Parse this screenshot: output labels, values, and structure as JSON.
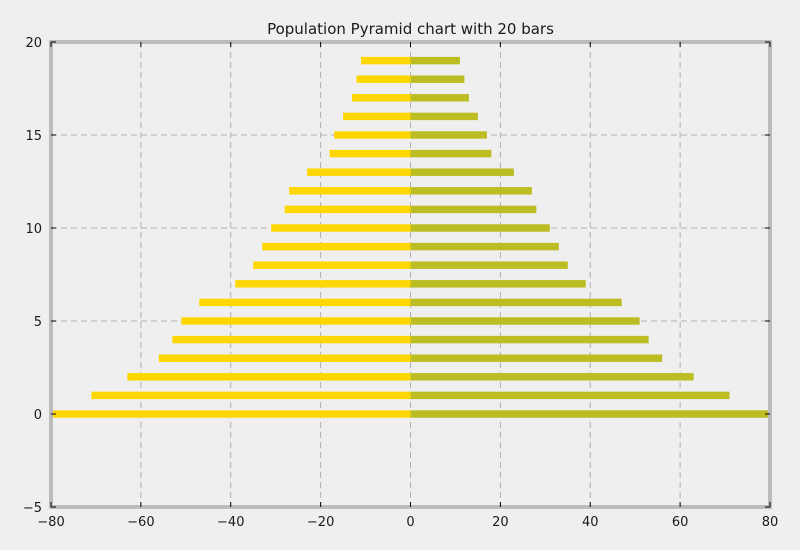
{
  "chart_data": {
    "type": "bar",
    "orientation": "horizontal",
    "title": "Population Pyramid chart with 20 bars",
    "xlabel": "",
    "ylabel": "",
    "xlim": [
      -80,
      80
    ],
    "ylim": [
      -5,
      20
    ],
    "xticks": [
      "−80",
      "−60",
      "−40",
      "−20",
      "0",
      "20",
      "40",
      "60",
      "80"
    ],
    "yticks": [
      "−5",
      "0",
      "5",
      "10",
      "15",
      "20"
    ],
    "grid": true,
    "categories": [
      0,
      1,
      2,
      3,
      4,
      5,
      6,
      7,
      8,
      9,
      10,
      11,
      12,
      13,
      14,
      15,
      16,
      17,
      18,
      19
    ],
    "series": [
      {
        "color": "#ffd700",
        "values": [
          -80,
          -71,
          -63,
          -56,
          -53,
          -51,
          -47,
          -39,
          -35,
          -33,
          -31,
          -28,
          -27,
          -23,
          -18,
          -17,
          -15,
          -13,
          -12,
          -11
        ]
      },
      {
        "color": "#bcbd22",
        "values": [
          80,
          71,
          63,
          56,
          53,
          51,
          47,
          39,
          35,
          33,
          31,
          28,
          27,
          23,
          18,
          17,
          15,
          13,
          12,
          11
        ]
      }
    ],
    "colors": {
      "background": "#efefef",
      "frame": "#bcbcbc",
      "grid": "#b0b0b0"
    }
  }
}
